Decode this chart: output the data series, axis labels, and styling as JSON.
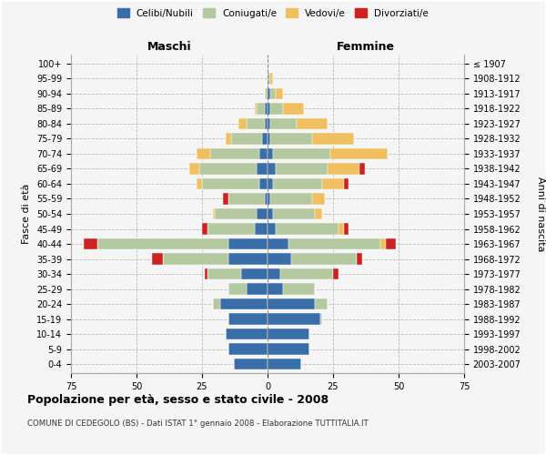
{
  "age_groups": [
    "0-4",
    "5-9",
    "10-14",
    "15-19",
    "20-24",
    "25-29",
    "30-34",
    "35-39",
    "40-44",
    "45-49",
    "50-54",
    "55-59",
    "60-64",
    "65-69",
    "70-74",
    "75-79",
    "80-84",
    "85-89",
    "90-94",
    "95-99",
    "100+"
  ],
  "birth_years": [
    "2003-2007",
    "1998-2002",
    "1993-1997",
    "1988-1992",
    "1983-1987",
    "1978-1982",
    "1973-1977",
    "1968-1972",
    "1963-1967",
    "1958-1962",
    "1953-1957",
    "1948-1952",
    "1943-1947",
    "1938-1942",
    "1933-1937",
    "1928-1932",
    "1923-1927",
    "1918-1922",
    "1913-1917",
    "1908-1912",
    "≤ 1907"
  ],
  "colors": {
    "celibi": "#3a6ea8",
    "coniugati": "#b5c9a0",
    "vedovi": "#f0c060",
    "divorziati": "#cc2222"
  },
  "male": {
    "celibi": [
      13,
      15,
      16,
      15,
      18,
      8,
      10,
      15,
      15,
      5,
      4,
      1,
      3,
      4,
      3,
      2,
      1,
      1,
      0,
      0,
      0
    ],
    "coniugati": [
      0,
      0,
      0,
      0,
      3,
      7,
      13,
      25,
      50,
      18,
      16,
      14,
      22,
      22,
      19,
      12,
      7,
      3,
      1,
      0,
      0
    ],
    "vedovi": [
      0,
      0,
      0,
      0,
      0,
      0,
      0,
      0,
      0,
      0,
      1,
      0,
      2,
      4,
      5,
      2,
      3,
      1,
      0,
      0,
      0
    ],
    "divorziati": [
      0,
      0,
      0,
      0,
      0,
      0,
      1,
      4,
      5,
      2,
      0,
      2,
      0,
      0,
      0,
      0,
      0,
      0,
      0,
      0,
      0
    ]
  },
  "female": {
    "celibi": [
      13,
      16,
      16,
      20,
      18,
      6,
      5,
      9,
      8,
      3,
      2,
      1,
      2,
      3,
      2,
      1,
      1,
      1,
      1,
      0,
      0
    ],
    "coniugati": [
      0,
      0,
      0,
      1,
      5,
      12,
      20,
      25,
      35,
      24,
      16,
      16,
      19,
      20,
      22,
      16,
      10,
      5,
      2,
      1,
      0
    ],
    "vedovi": [
      0,
      0,
      0,
      0,
      0,
      0,
      0,
      0,
      2,
      2,
      3,
      5,
      8,
      12,
      22,
      16,
      12,
      8,
      3,
      1,
      0
    ],
    "divorziati": [
      0,
      0,
      0,
      0,
      0,
      0,
      2,
      2,
      4,
      2,
      0,
      0,
      2,
      2,
      0,
      0,
      0,
      0,
      0,
      0,
      0
    ]
  },
  "xlim": 75,
  "title": "Popolazione per età, sesso e stato civile - 2008",
  "subtitle": "COMUNE DI CEDEGOLO (BS) - Dati ISTAT 1° gennaio 2008 - Elaborazione TUTTITALIA.IT",
  "ylabel_left": "Fasce di età",
  "ylabel_right": "Anni di nascita",
  "xlabel_male": "Maschi",
  "xlabel_female": "Femmine",
  "legend_labels": [
    "Celibi/Nubili",
    "Coniugati/e",
    "Vedovi/e",
    "Divorziati/e"
  ],
  "background_color": "#f5f5f5",
  "bar_height": 0.75
}
